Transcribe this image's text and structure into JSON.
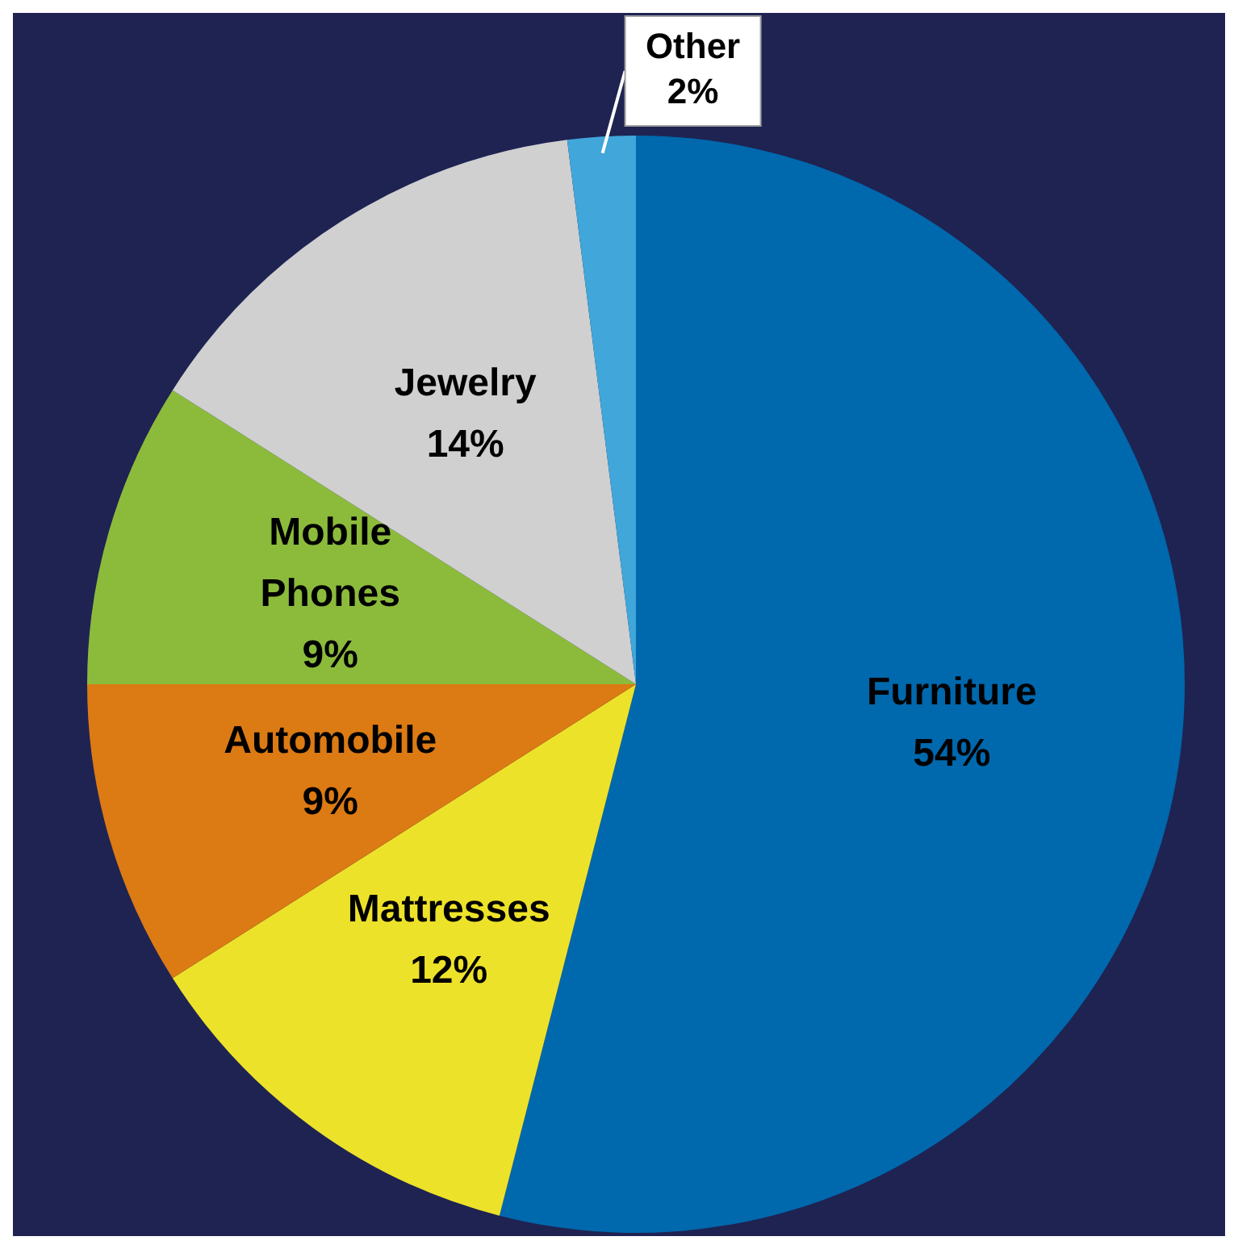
{
  "chart_data": {
    "type": "pie",
    "categories": [
      "Furniture",
      "Mattresses",
      "Automobile",
      "Mobile Phones",
      "Jewelry",
      "Other"
    ],
    "values": [
      54,
      12,
      9,
      9,
      14,
      2
    ],
    "colors": [
      "#0068ad",
      "#ede22a",
      "#dc7a14",
      "#8cbb3c",
      "#d0d0d0",
      "#41a6d9"
    ],
    "value_labels": [
      "54%",
      "12%",
      "9%",
      "9%",
      "14%",
      "2%"
    ],
    "legend": false
  }
}
